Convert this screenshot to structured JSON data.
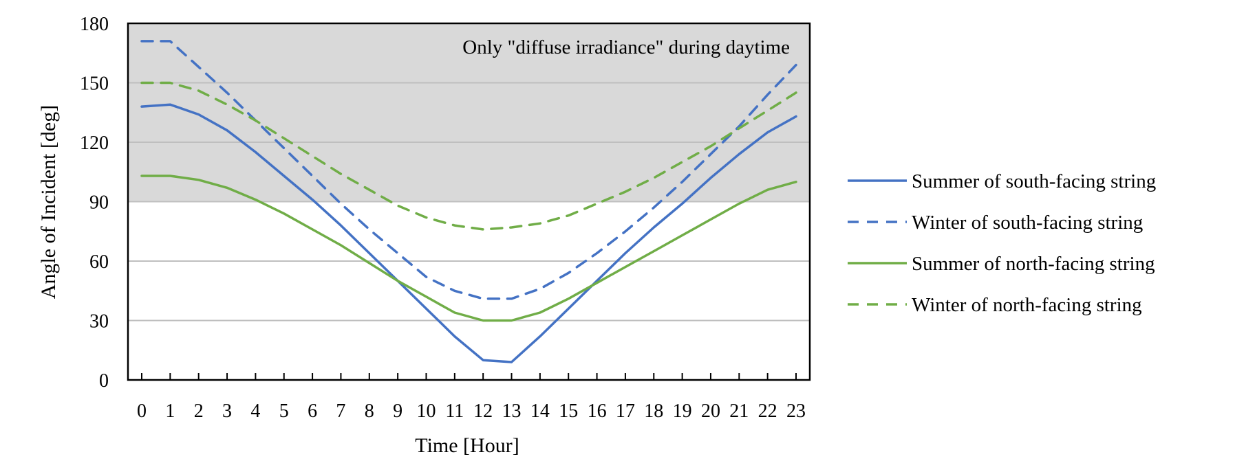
{
  "chart_data": {
    "type": "line",
    "annotation": "Only \"diffuse irradiance\" during daytime",
    "xlabel": "Time [Hour]",
    "ylabel": "Angle of Incident [deg]",
    "ylim": [
      0,
      180
    ],
    "yticks": [
      0,
      30,
      60,
      90,
      120,
      150,
      180
    ],
    "shaded_region": [
      90,
      180
    ],
    "grid": true,
    "legend_position": "right",
    "x": [
      0,
      1,
      2,
      3,
      4,
      5,
      6,
      7,
      8,
      9,
      10,
      11,
      12,
      13,
      14,
      15,
      16,
      17,
      18,
      19,
      20,
      21,
      22,
      23
    ],
    "series": [
      {
        "name": "Summer of south-facing string",
        "color": "#4472C4",
        "dash": "solid",
        "values": [
          138,
          139,
          134,
          126,
          115,
          103,
          91,
          78,
          64,
          50,
          36,
          22,
          10,
          9,
          22,
          36,
          50,
          64,
          77,
          89,
          102,
          114,
          125,
          133
        ]
      },
      {
        "name": "Winter of south-facing string",
        "color": "#4472C4",
        "dash": "dashed",
        "values": [
          171,
          171,
          158,
          145,
          131,
          117,
          103,
          89,
          76,
          64,
          52,
          45,
          41,
          41,
          46,
          54,
          64,
          75,
          87,
          100,
          114,
          128,
          144,
          159
        ]
      },
      {
        "name": "Summer of north-facing string",
        "color": "#70AD47",
        "dash": "solid",
        "values": [
          103,
          103,
          101,
          97,
          91,
          84,
          76,
          68,
          59,
          50,
          42,
          34,
          30,
          30,
          34,
          41,
          49,
          57,
          65,
          73,
          81,
          89,
          96,
          100
        ]
      },
      {
        "name": "Winter of north-facing string",
        "color": "#70AD47",
        "dash": "dashed",
        "values": [
          150,
          150,
          146,
          139,
          131,
          122,
          113,
          104,
          96,
          88,
          82,
          78,
          76,
          77,
          79,
          83,
          89,
          95,
          102,
          110,
          118,
          127,
          136,
          145
        ]
      }
    ]
  }
}
